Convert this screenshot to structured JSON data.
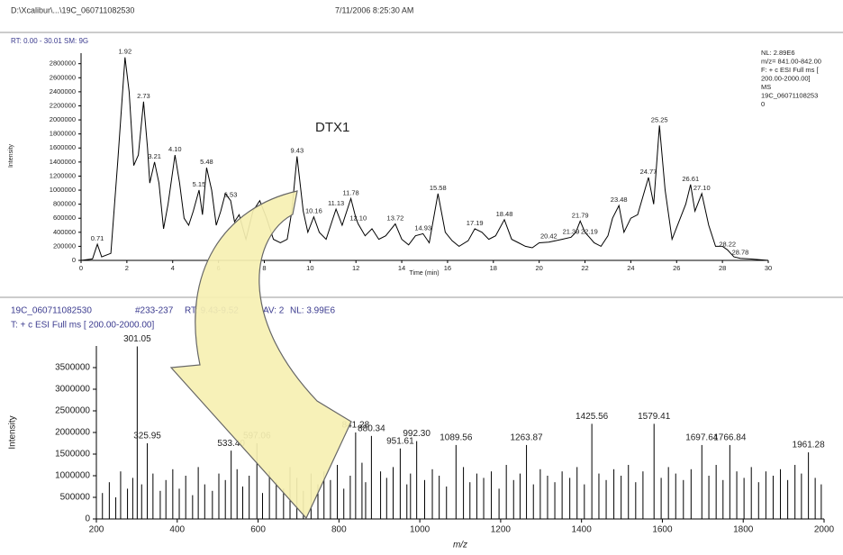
{
  "header": {
    "file": "D:\\Xcalibur\\...\\19C_060711082530",
    "date": "7/11/2006 8:25:30 AM"
  },
  "chart_data": [
    {
      "type": "line",
      "info": "RT: 0.00 - 30.01 SM: 9G",
      "annotation": "DTX1",
      "side_info": [
        "NL: 2.89E6",
        "m/z= 841.00-842.00",
        "F: + c ESI Full ms [",
        "200.00-2000.00]",
        "MS",
        "19C_06071108253",
        "0"
      ],
      "xlabel": "Time (min)",
      "ylabel": "Intensity",
      "color": "#000000",
      "xlim": [
        0,
        30
      ],
      "ylim": [
        0,
        2950000
      ],
      "xticks": [
        0,
        2,
        4,
        6,
        8,
        10,
        12,
        14,
        16,
        18,
        20,
        22,
        24,
        26,
        28,
        30
      ],
      "yticks": [
        0,
        200000,
        400000,
        600000,
        800000,
        1000000,
        1200000,
        1400000,
        1600000,
        1800000,
        2000000,
        2200000,
        2400000,
        2600000,
        2800000
      ],
      "x": [
        0,
        0.5,
        0.71,
        0.9,
        1.3,
        1.6,
        1.92,
        2.1,
        2.3,
        2.5,
        2.73,
        2.9,
        3.0,
        3.21,
        3.4,
        3.6,
        3.8,
        4.1,
        4.3,
        4.5,
        4.7,
        4.9,
        5.15,
        5.3,
        5.48,
        5.7,
        5.9,
        6.1,
        6.3,
        6.53,
        6.7,
        6.9,
        7.2,
        7.5,
        7.8,
        8.1,
        8.4,
        8.7,
        9.0,
        9.2,
        9.43,
        9.7,
        9.9,
        10.16,
        10.4,
        10.7,
        10.9,
        11.13,
        11.4,
        11.78,
        12.0,
        12.1,
        12.4,
        12.7,
        13.0,
        13.3,
        13.72,
        14.0,
        14.3,
        14.6,
        14.93,
        15.2,
        15.58,
        15.9,
        16.2,
        16.5,
        16.9,
        17.19,
        17.5,
        17.8,
        18.1,
        18.48,
        18.8,
        19.1,
        19.4,
        19.7,
        20.0,
        20.42,
        20.7,
        21.0,
        21.39,
        21.6,
        21.79,
        22.0,
        22.19,
        22.4,
        22.7,
        23.0,
        23.2,
        23.48,
        23.7,
        24.0,
        24.3,
        24.77,
        25.0,
        25.25,
        25.5,
        25.8,
        26.1,
        26.4,
        26.61,
        26.8,
        27.1,
        27.4,
        27.7,
        28.0,
        28.22,
        28.5,
        28.78,
        29.2,
        30
      ],
      "values": [
        0,
        20000,
        230000,
        50000,
        100000,
        1400000,
        2890000,
        2400000,
        1350000,
        1500000,
        2260000,
        1600000,
        1100000,
        1400000,
        1100000,
        450000,
        800000,
        1500000,
        1100000,
        600000,
        500000,
        700000,
        1000000,
        650000,
        1320000,
        1000000,
        500000,
        700000,
        950000,
        850000,
        550000,
        650000,
        300000,
        700000,
        850000,
        600000,
        300000,
        250000,
        300000,
        700000,
        1480000,
        700000,
        400000,
        620000,
        400000,
        300000,
        500000,
        730000,
        500000,
        880000,
        600000,
        520000,
        350000,
        450000,
        300000,
        350000,
        520000,
        300000,
        220000,
        350000,
        380000,
        250000,
        950000,
        400000,
        280000,
        200000,
        280000,
        450000,
        400000,
        300000,
        350000,
        580000,
        300000,
        250000,
        200000,
        180000,
        250000,
        260000,
        280000,
        300000,
        330000,
        400000,
        560000,
        400000,
        330000,
        250000,
        200000,
        350000,
        600000,
        780000,
        400000,
        600000,
        650000,
        1180000,
        800000,
        1920000,
        1000000,
        300000,
        550000,
        800000,
        1080000,
        700000,
        950000,
        500000,
        200000,
        200000,
        150000,
        50000,
        30000,
        20000,
        0
      ],
      "annotations": [
        {
          "text": "0.71",
          "x": 0.71,
          "y": 230000
        },
        {
          "text": "1.92",
          "x": 1.92,
          "y": 2890000
        },
        {
          "text": "2.73",
          "x": 2.73,
          "y": 2260000
        },
        {
          "text": "3.21",
          "x": 3.21,
          "y": 1400000
        },
        {
          "text": "4.10",
          "x": 4.1,
          "y": 1500000
        },
        {
          "text": "5.15",
          "x": 5.15,
          "y": 1000000
        },
        {
          "text": "5.48",
          "x": 5.48,
          "y": 1320000
        },
        {
          "text": "6.53",
          "x": 6.53,
          "y": 850000
        },
        {
          "text": "9.43",
          "x": 9.43,
          "y": 1480000
        },
        {
          "text": "10.16",
          "x": 10.16,
          "y": 620000
        },
        {
          "text": "11.13",
          "x": 11.13,
          "y": 730000
        },
        {
          "text": "11.78",
          "x": 11.78,
          "y": 880000
        },
        {
          "text": "12.10",
          "x": 12.1,
          "y": 520000
        },
        {
          "text": "13.72",
          "x": 13.72,
          "y": 520000
        },
        {
          "text": "14.93",
          "x": 14.93,
          "y": 380000
        },
        {
          "text": "15.58",
          "x": 15.58,
          "y": 950000
        },
        {
          "text": "17.19",
          "x": 17.19,
          "y": 450000
        },
        {
          "text": "18.48",
          "x": 18.48,
          "y": 580000
        },
        {
          "text": "20.42",
          "x": 20.42,
          "y": 260000
        },
        {
          "text": "21.39",
          "x": 21.39,
          "y": 330000
        },
        {
          "text": "21.79",
          "x": 21.79,
          "y": 560000
        },
        {
          "text": "22.19",
          "x": 22.19,
          "y": 330000
        },
        {
          "text": "23.48",
          "x": 23.48,
          "y": 780000
        },
        {
          "text": "24.77",
          "x": 24.77,
          "y": 1180000
        },
        {
          "text": "25.25",
          "x": 25.25,
          "y": 1920000
        },
        {
          "text": "26.61",
          "x": 26.61,
          "y": 1080000
        },
        {
          "text": "27.10",
          "x": 27.1,
          "y": 950000
        },
        {
          "text": "28.22",
          "x": 28.22,
          "y": 150000
        },
        {
          "text": "28.78",
          "x": 28.78,
          "y": 30000
        }
      ]
    },
    {
      "type": "stick",
      "info": [
        "19C_060711082530",
        "#233-237",
        "RT: 9.43-9.52",
        "AV: 2",
        "NL: 3.99E6"
      ],
      "filter": "T: + c ESI Full ms [ 200.00-2000.00]",
      "xlabel": "m/z",
      "ylabel": "Intensity",
      "color": "#000000",
      "xlim": [
        200,
        2000
      ],
      "ylim": [
        0,
        4000000
      ],
      "xticks": [
        200,
        400,
        600,
        800,
        1000,
        1200,
        1400,
        1600,
        1800,
        2000
      ],
      "yticks": [
        0,
        500000,
        1000000,
        1500000,
        2000000,
        2500000,
        3000000,
        3500000
      ],
      "x": [
        215,
        232,
        248,
        260,
        277,
        290,
        312,
        340,
        358,
        372,
        389,
        405,
        421,
        438,
        452,
        468,
        487,
        503,
        519,
        548,
        562,
        578,
        611,
        628,
        645,
        663,
        679,
        696,
        712,
        731,
        748,
        763,
        779,
        796,
        812,
        828,
        857,
        866,
        903,
        918,
        934,
        968,
        977,
        1012,
        1031,
        1048,
        1066,
        1108,
        1124,
        1141,
        1158,
        1177,
        1196,
        1214,
        1232,
        1248,
        1281,
        1298,
        1316,
        1334,
        1352,
        1371,
        1389,
        1407,
        1443,
        1461,
        1480,
        1498,
        1516,
        1534,
        1552,
        1597,
        1615,
        1633,
        1652,
        1671,
        1715,
        1733,
        1750,
        1784,
        1802,
        1820,
        1838,
        1856,
        1874,
        1892,
        1910,
        1928,
        1944,
        1978,
        1993,
        301.05,
        325.95,
        533.4,
        597.06,
        841.28,
        880.34,
        951.61,
        992.3,
        1089.56,
        1263.87,
        1425.56,
        1579.41,
        1697.64,
        1766.84,
        1961.28
      ],
      "values": [
        600000,
        850000,
        500000,
        1100000,
        700000,
        950000,
        800000,
        1050000,
        650000,
        900000,
        1150000,
        700000,
        1000000,
        550000,
        1200000,
        800000,
        650000,
        1050000,
        900000,
        1150000,
        750000,
        1000000,
        600000,
        1100000,
        850000,
        700000,
        1200000,
        950000,
        650000,
        1050000,
        800000,
        1100000,
        900000,
        1250000,
        700000,
        1000000,
        1300000,
        850000,
        1100000,
        950000,
        1200000,
        800000,
        1050000,
        900000,
        1150000,
        1000000,
        750000,
        1200000,
        850000,
        1050000,
        950000,
        1100000,
        700000,
        1250000,
        900000,
        1050000,
        800000,
        1150000,
        1000000,
        850000,
        1100000,
        950000,
        1200000,
        800000,
        1050000,
        900000,
        1150000,
        1000000,
        1250000,
        850000,
        1100000,
        950000,
        1200000,
        1050000,
        900000,
        1150000,
        1000000,
        1250000,
        900000,
        1100000,
        950000,
        1200000,
        850000,
        1100000,
        1000000,
        1150000,
        900000,
        1250000,
        1050000,
        950000,
        800000,
        3990000,
        1750000,
        1580000,
        1750000,
        2000000,
        1920000,
        1630000,
        1800000,
        1710000,
        1710000,
        2200000,
        2200000,
        1710000,
        1710000,
        1540000
      ],
      "annotations": [
        {
          "text": "301.05",
          "x": 301.05,
          "y": 3990000
        },
        {
          "text": "325.95",
          "x": 325.95,
          "y": 1750000
        },
        {
          "text": "533.40",
          "x": 533.4,
          "y": 1580000
        },
        {
          "text": "597.06",
          "x": 597.06,
          "y": 1750000
        },
        {
          "text": "841.28",
          "x": 841.28,
          "y": 2000000
        },
        {
          "text": "880.34",
          "x": 880.34,
          "y": 1920000
        },
        {
          "text": "951.61",
          "x": 951.61,
          "y": 1630000
        },
        {
          "text": "992.30",
          "x": 992.3,
          "y": 1800000
        },
        {
          "text": "1089.56",
          "x": 1089.56,
          "y": 1710000
        },
        {
          "text": "1263.87",
          "x": 1263.87,
          "y": 1710000
        },
        {
          "text": "1425.56",
          "x": 1425.56,
          "y": 2200000
        },
        {
          "text": "1579.41",
          "x": 1579.41,
          "y": 2200000
        },
        {
          "text": "1697.64",
          "x": 1697.64,
          "y": 1710000
        },
        {
          "text": "1766.84",
          "x": 1766.84,
          "y": 1710000
        },
        {
          "text": "1961.28",
          "x": 1961.28,
          "y": 1540000
        }
      ]
    }
  ]
}
